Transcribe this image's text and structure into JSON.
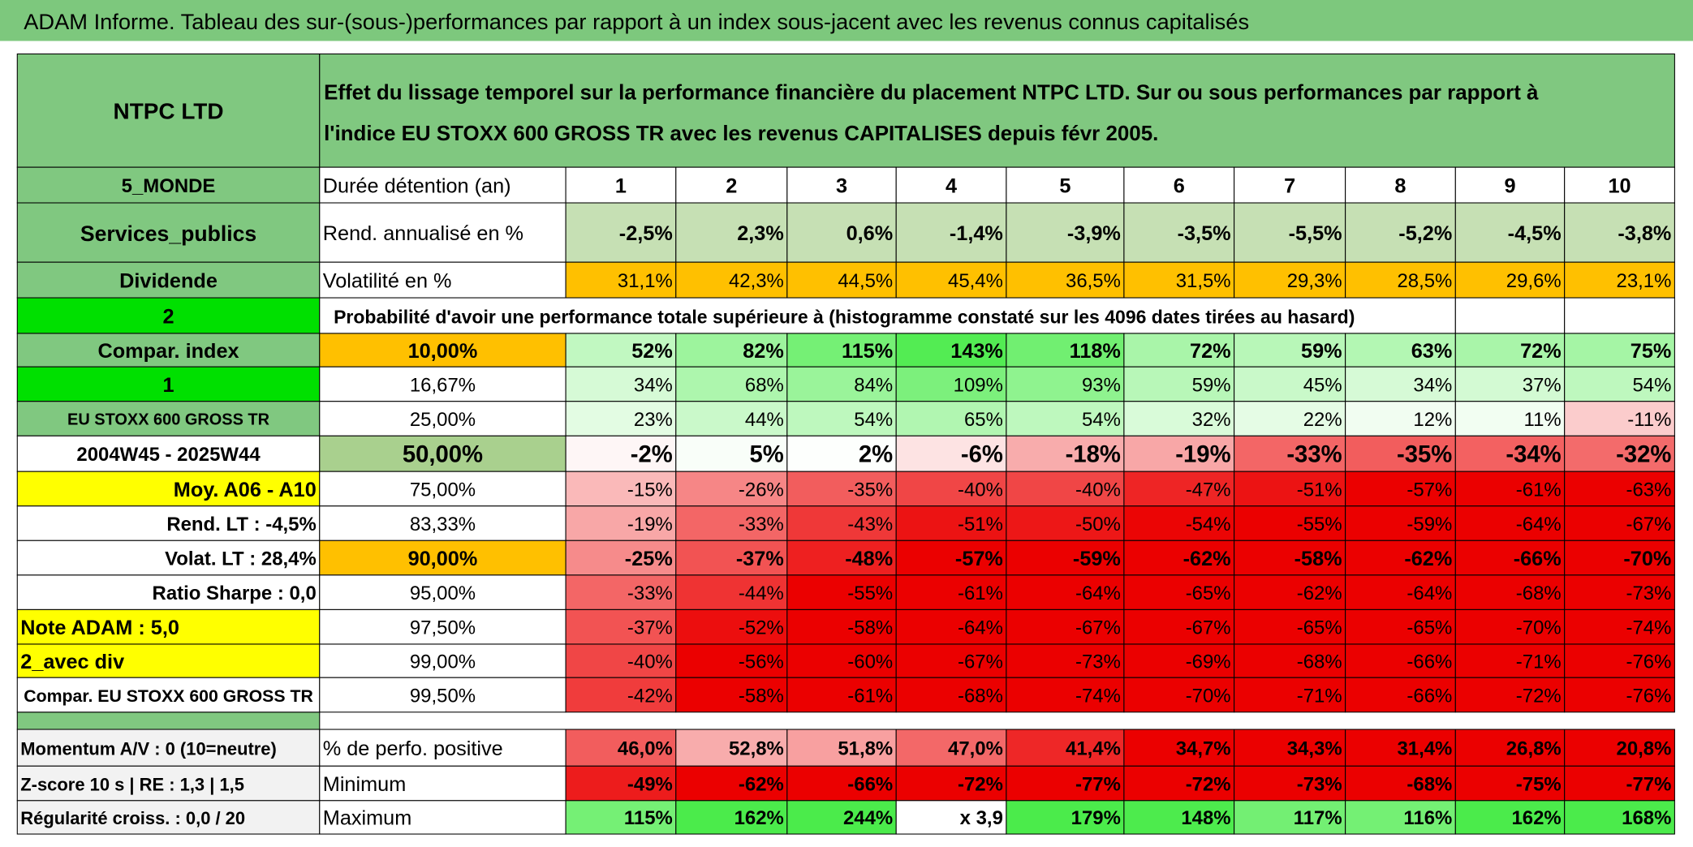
{
  "header": {
    "title": "ADAM Informe. Tableau des sur-(sous-)performances par rapport à un index sous-jacent avec les revenus connus capitalisés"
  },
  "table": {
    "name": "NTPC LTD",
    "description": [
      "Effet du lissage temporel sur la performance financière du placement NTPC LTD. Sur ou sous performances par rapport à",
      "l'indice EU STOXX 600 GROSS TR avec les revenus CAPITALISES depuis févr 2005."
    ],
    "rows": [
      {
        "label": "5_MONDE",
        "title": "Durée détention (an)",
        "values": [
          1,
          2,
          3,
          4,
          5,
          6,
          7,
          8,
          9,
          10
        ]
      },
      {
        "label": "Services_publics",
        "title": "Rend. annualisé en %",
        "values": [
          "-2,5%",
          "2,3%",
          "0,6%",
          "-1,4%",
          "-3,9%",
          "-3,5%",
          "-5,5%",
          "-5,2%",
          "-4,5%",
          "-3,8%"
        ]
      },
      {
        "label": "Dividende",
        "title": "Volatilité en %",
        "values": [
          "31,1%",
          "42,3%",
          "44,5%",
          "45,4%",
          "36,5%",
          "31,5%",
          "29,3%",
          "28,5%",
          "29,6%",
          "23,1%"
        ]
      },
      {
        "label": "2",
        "title": "Probabilité d'avoir une performance totale supérieure à (histogramme constaté sur les 4096 dates tirées au hasard)"
      },
      {
        "label": "Compar. index",
        "title": "10,00%",
        "values": [
          "52%",
          "82%",
          "115%",
          "143%",
          "118%",
          "72%",
          "59%",
          "63%",
          "72%",
          "75%"
        ]
      },
      {
        "label": "1",
        "title": "16,67%",
        "values": [
          "34%",
          "68%",
          "84%",
          "109%",
          "93%",
          "59%",
          "45%",
          "34%",
          "37%",
          "54%"
        ]
      },
      {
        "label": "EU STOXX 600 GROSS TR",
        "title": "25,00%",
        "values": [
          "23%",
          "44%",
          "54%",
          "65%",
          "54%",
          "32%",
          "22%",
          "12%",
          "11%",
          "-11%"
        ]
      },
      {
        "label": "2004W45 - 2025W44",
        "title": "50,00%",
        "values": [
          "-2%",
          "5%",
          "2%",
          "-6%",
          "-18%",
          "-19%",
          "-33%",
          "-35%",
          "-34%",
          "-32%"
        ]
      },
      {
        "label": "Moy. A06 - A10",
        "title": "75,00%",
        "values": [
          "-15%",
          "-26%",
          "-35%",
          "-40%",
          "-40%",
          "-47%",
          "-51%",
          "-57%",
          "-61%",
          "-63%"
        ]
      },
      {
        "label": "Rend. LT :   -4,5%",
        "title": "83,33%",
        "values": [
          "-19%",
          "-33%",
          "-43%",
          "-51%",
          "-50%",
          "-54%",
          "-55%",
          "-59%",
          "-64%",
          "-67%"
        ]
      },
      {
        "label": "Volat. LT :   28,4%",
        "title": "90,00%",
        "values": [
          "-25%",
          "-37%",
          "-48%",
          "-57%",
          "-59%",
          "-62%",
          "-58%",
          "-62%",
          "-66%",
          "-70%"
        ]
      },
      {
        "label": "Ratio Sharpe :    0,0",
        "title": "95,00%",
        "values": [
          "-33%",
          "-44%",
          "-55%",
          "-61%",
          "-64%",
          "-65%",
          "-62%",
          "-64%",
          "-68%",
          "-73%"
        ]
      },
      {
        "label": "Note ADAM : 5,0",
        "title": "97,50%",
        "values": [
          "-37%",
          "-52%",
          "-58%",
          "-64%",
          "-67%",
          "-67%",
          "-65%",
          "-65%",
          "-70%",
          "-74%"
        ]
      },
      {
        "label": "2_avec div",
        "title": "99,00%",
        "values": [
          "-40%",
          "-56%",
          "-60%",
          "-67%",
          "-73%",
          "-69%",
          "-68%",
          "-66%",
          "-71%",
          "-76%"
        ]
      },
      {
        "label": "Compar. EU STOXX 600 GROSS TR",
        "title": "99,50%",
        "values": [
          "-42%",
          "-58%",
          "-61%",
          "-68%",
          "-74%",
          "-70%",
          "-71%",
          "-66%",
          "-72%",
          "-76%"
        ]
      },
      {
        "label": "Momentum A/V : 0 (10=neutre)",
        "title": "% de perfo. positive",
        "values": [
          "46,0%",
          "52,8%",
          "51,8%",
          "47,0%",
          "41,4%",
          "34,7%",
          "34,3%",
          "31,4%",
          "26,8%",
          "20,8%"
        ]
      },
      {
        "label": "Z-score 10 s | RE : 1,3 | 1,5",
        "title": "Minimum",
        "values": [
          "-49%",
          "-62%",
          "-66%",
          "-72%",
          "-77%",
          "-72%",
          "-73%",
          "-68%",
          "-75%",
          "-77%"
        ]
      },
      {
        "label": "Régularité croiss. : 0,0 / 20",
        "title": "Maximum",
        "values": [
          "115%",
          "162%",
          "244%",
          "x 3,9",
          "179%",
          "148%",
          "117%",
          "116%",
          "162%",
          "168%"
        ]
      }
    ]
  }
}
